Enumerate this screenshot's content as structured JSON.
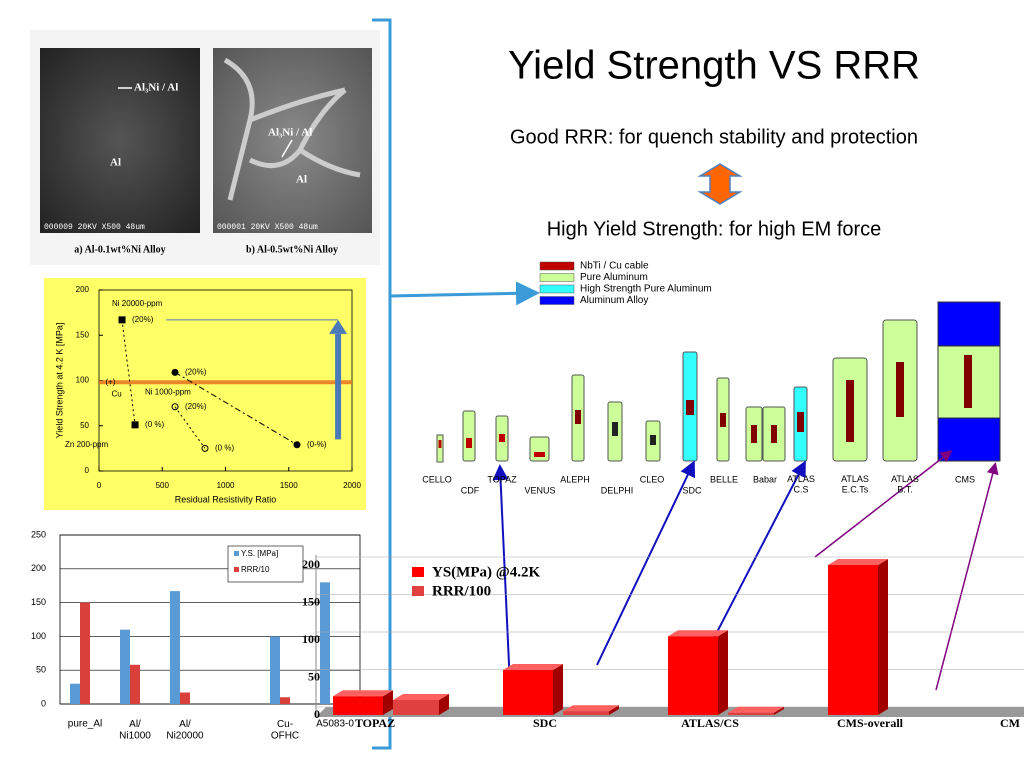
{
  "title": "Yield Strength VS RRR",
  "subtitle_1": "Good RRR: for quench stability and protection",
  "subtitle_2": "High Yield Strength: for high EM force",
  "micrographs": [
    {
      "caption": "a) Al-0.1wt%Ni Alloy",
      "labels": [
        "Al₃Ni / Al",
        "Al"
      ],
      "footer": "000009 20KV X500 48um"
    },
    {
      "caption": "b) Al-0.5wt%Ni Alloy",
      "labels": [
        "Al₃Ni / Al",
        "Al"
      ],
      "footer": "000001 20KV X500 48um"
    }
  ],
  "detectors": {
    "legend": [
      {
        "name": "NbTi / Cu cable",
        "color": "#c00000"
      },
      {
        "name": "Pure Aluminum",
        "color": "#ccff99"
      },
      {
        "name": "High Strength Pure Aluminum",
        "color": "#33ffff"
      },
      {
        "name": "Aluminum Alloy",
        "color": "#0000ff"
      }
    ],
    "names": [
      "CELLO",
      "CDF",
      "TOPAZ",
      "VENUS",
      "ALEPH",
      "DELPHI",
      "CLEO",
      "SDC",
      "BELLE",
      "Babar",
      "ATLAS\nC.S",
      "ATLAS\nE.C.Ts",
      "ATLAS\nB.T.",
      "CMS"
    ]
  },
  "chart_data": [
    {
      "type": "scatter",
      "x_label": "Residual Resistivity Ratio",
      "y_label": "Yield Strength at 4.2 K   [MPa]",
      "xlim": [
        0,
        2000
      ],
      "ylim": [
        0,
        200
      ],
      "xticks": [
        0,
        500,
        1000,
        1500,
        2000
      ],
      "yticks": [
        0,
        50,
        100,
        150,
        200
      ],
      "background": "#ffff66",
      "series": [
        {
          "name": "Ni 20000-ppm",
          "color": "#000000",
          "marker": "square",
          "x": [
            182,
            285
          ],
          "values": [
            167,
            51
          ],
          "point_labels": [
            "(20%)",
            "(0 %)"
          ]
        },
        {
          "name": "Ni 1000-ppm",
          "color": "#000000",
          "marker": "circle",
          "x": [
            601,
            1565
          ],
          "values": [
            109,
            29
          ],
          "point_labels": [
            "(20%)",
            "(0-%)"
          ]
        },
        {
          "name": "Zn 200-ppm",
          "color": "#000000",
          "marker": "open-circle",
          "x": [
            601,
            838
          ],
          "values": [
            71,
            25
          ],
          "point_labels": [
            "(20%)",
            "(0 %)"
          ]
        },
        {
          "name": "Cu",
          "color": "#000000",
          "marker": "none",
          "x": [
            130
          ],
          "values": [
            98
          ],
          "point_labels": [
            "(+)"
          ]
        }
      ],
      "reference_line": {
        "value": 98,
        "color": "#e8731e"
      },
      "arrow": {
        "x": 1890,
        "from": 35,
        "to": 167,
        "color": "#4a7ab8"
      }
    },
    {
      "type": "bar",
      "ylim": [
        0,
        250
      ],
      "yticks": [
        0,
        50,
        100,
        150,
        200,
        250
      ],
      "categories": [
        "pure_Al",
        "Al/\nNi1000",
        "Al/\nNi20000",
        null,
        "Cu-\nOFHC",
        "A5083-0"
      ],
      "series": [
        {
          "name": "Y.S. [MPa]",
          "color": "#5b9bd5",
          "values": [
            30,
            110,
            167,
            null,
            100,
            180
          ]
        },
        {
          "name": "RRR/10",
          "color": "#d9403b",
          "values": [
            150,
            58,
            17,
            null,
            10,
            null
          ]
        }
      ]
    },
    {
      "type": "bar3d",
      "ylim": [
        0,
        200
      ],
      "yticks": [
        0,
        50,
        100,
        150,
        200
      ],
      "categories": [
        "TOPAZ",
        "SDC",
        "ATLAS/CS",
        "CMS-overall",
        "CM"
      ],
      "series": [
        {
          "name": "YS(MPa) @4.2K",
          "color": "#ff0000",
          "values": [
            25,
            60,
            105,
            200,
            null
          ]
        },
        {
          "name": "RRR/100",
          "color": "#e04040",
          "values": [
            20,
            5,
            3,
            null,
            null
          ]
        }
      ]
    }
  ]
}
